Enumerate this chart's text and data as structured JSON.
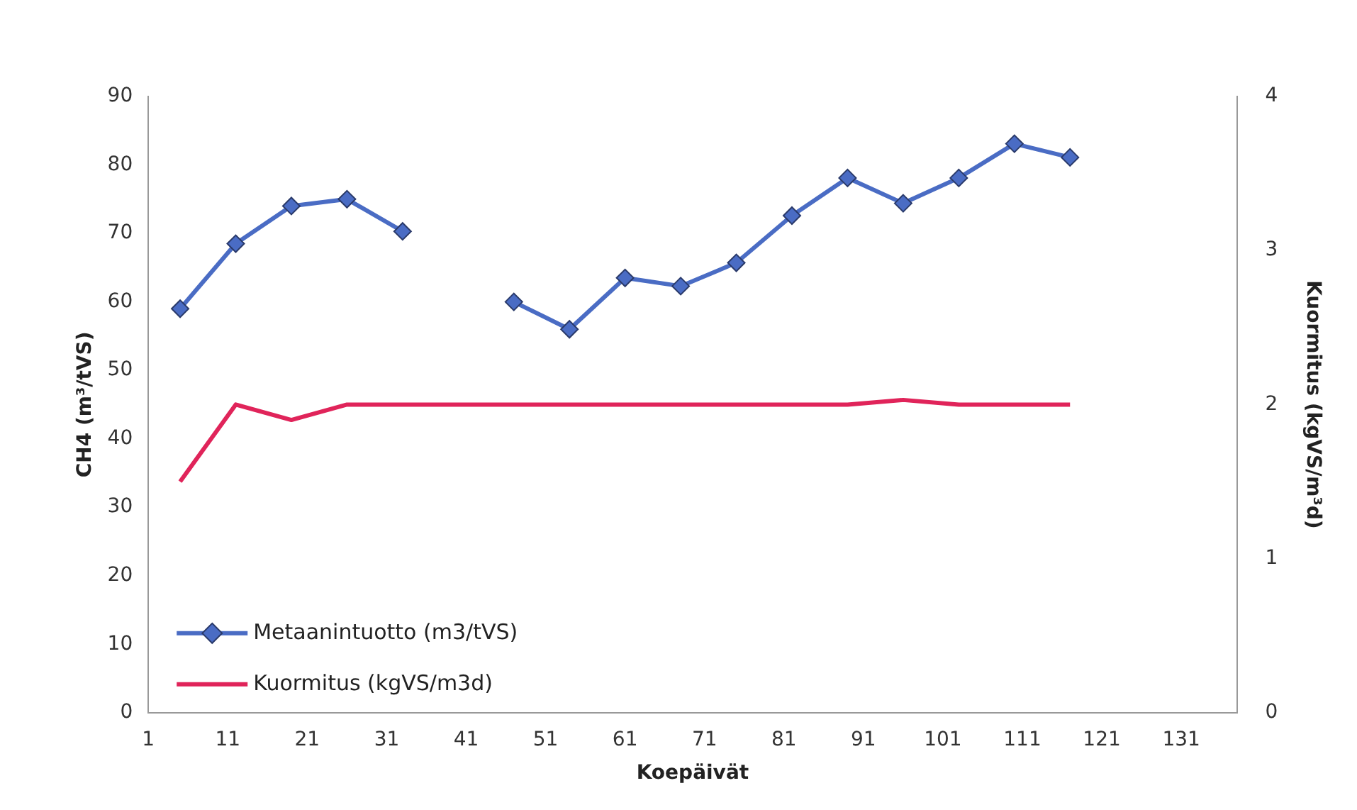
{
  "chart_data": {
    "type": "line",
    "xlabel": "Koepäivät",
    "ylabel": "CH4 (m³/tVS)",
    "y2label": "Kuormitus (kgVS/m³d)",
    "x": [
      5,
      12,
      19,
      26,
      33,
      40,
      47,
      54,
      61,
      68,
      75,
      82,
      89,
      96,
      103,
      110,
      117
    ],
    "series": [
      {
        "name": "Metaanintuotto (m3/tVS)",
        "color": "#4a6cc4",
        "marker": "diamond",
        "values": [
          59,
          68.5,
          74,
          75,
          70.3,
          null,
          60,
          56,
          63.5,
          62.3,
          65.7,
          72.6,
          78.1,
          74.4,
          78.1,
          83.1,
          81.1
        ]
      },
      {
        "name": "Kuormitus (kgVS/m3d)",
        "color": "#e0245a",
        "marker": "none",
        "axis": "y2",
        "values": [
          1.5,
          2,
          1.9,
          2,
          2,
          2,
          2,
          2,
          2,
          2,
          2,
          2,
          2,
          2.03,
          2,
          2,
          2
        ]
      }
    ],
    "xlim": [
      1,
      138
    ],
    "xticks": [
      1,
      11,
      21,
      31,
      41,
      51,
      61,
      71,
      81,
      91,
      101,
      111,
      121,
      131
    ],
    "ylim": [
      0,
      90
    ],
    "yticks": [
      0,
      10,
      20,
      30,
      40,
      50,
      60,
      70,
      80,
      90
    ],
    "y2lim": [
      0,
      4
    ],
    "y2ticks": [
      0,
      1,
      2,
      3,
      4
    ],
    "grid": false,
    "legend": "bottom left"
  }
}
